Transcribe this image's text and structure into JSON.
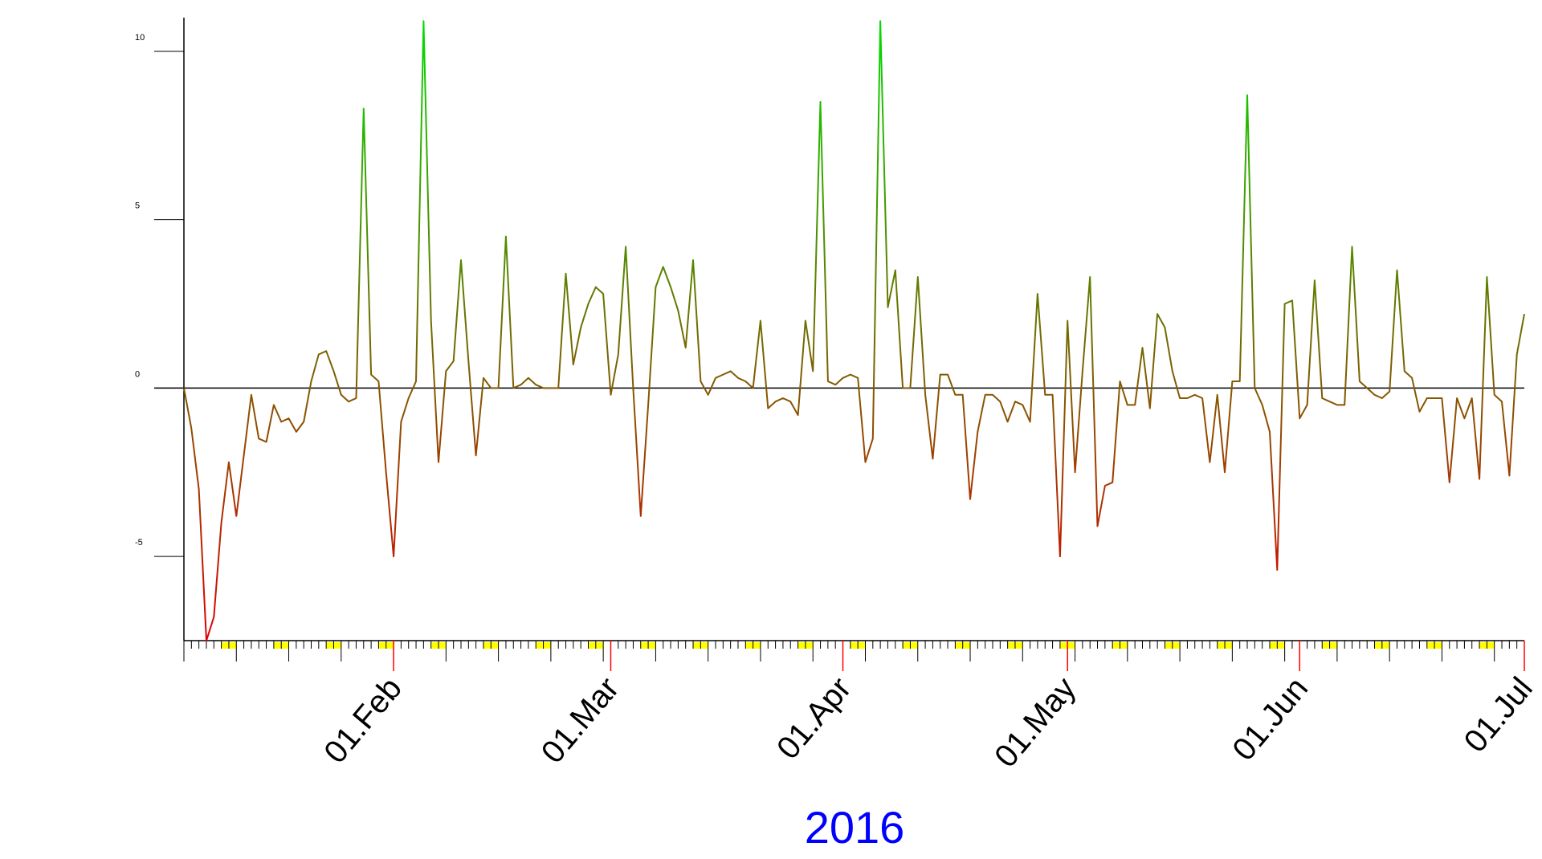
{
  "chart_data": {
    "type": "line",
    "year_label": "2016",
    "year_color": "#0000ff",
    "x_domain": [
      "2016-01-04",
      "2016-07-01"
    ],
    "ylim": [
      -7.5,
      11
    ],
    "yticks": [
      {
        "value": 10,
        "label": "10"
      },
      {
        "value": 5,
        "label": "5"
      },
      {
        "value": 0,
        "label": "0"
      },
      {
        "value": -5,
        "label": "-5"
      }
    ],
    "month_ticks": [
      {
        "date": "2016-02-01",
        "label": "01.Feb"
      },
      {
        "date": "2016-03-01",
        "label": "01.Mar"
      },
      {
        "date": "2016-04-01",
        "label": "01.Apr"
      },
      {
        "date": "2016-05-01",
        "label": "01.May"
      },
      {
        "date": "2016-06-01",
        "label": "01.Jun"
      },
      {
        "date": "2016-07-01",
        "label": "01.Jul"
      }
    ],
    "grid": false,
    "line_color_high": "#00dd00",
    "line_color_low": "#dd0000",
    "zero_line_color": "#000000",
    "weekend_marker_color": "#ffff00",
    "month_tick_color": "#ff0000",
    "series": [
      {
        "points": [
          [
            "2016-01-04",
            0.0
          ],
          [
            "2016-01-05",
            -1.2
          ],
          [
            "2016-01-06",
            -3.0
          ],
          [
            "2016-01-07",
            -7.5
          ],
          [
            "2016-01-08",
            -6.8
          ],
          [
            "2016-01-09",
            -4.0
          ],
          [
            "2016-01-10",
            -2.2
          ],
          [
            "2016-01-11",
            -3.8
          ],
          [
            "2016-01-12",
            -2.0
          ],
          [
            "2016-01-13",
            -0.2
          ],
          [
            "2016-01-14",
            -1.5
          ],
          [
            "2016-01-15",
            -1.6
          ],
          [
            "2016-01-16",
            -0.5
          ],
          [
            "2016-01-17",
            -1.0
          ],
          [
            "2016-01-18",
            -0.9
          ],
          [
            "2016-01-19",
            -1.3
          ],
          [
            "2016-01-20",
            -1.0
          ],
          [
            "2016-01-21",
            0.2
          ],
          [
            "2016-01-22",
            1.0
          ],
          [
            "2016-01-23",
            1.1
          ],
          [
            "2016-01-24",
            0.5
          ],
          [
            "2016-01-25",
            -0.2
          ],
          [
            "2016-01-26",
            -0.4
          ],
          [
            "2016-01-27",
            -0.3
          ],
          [
            "2016-01-28",
            8.3
          ],
          [
            "2016-01-29",
            0.4
          ],
          [
            "2016-01-30",
            0.2
          ],
          [
            "2016-01-31",
            -2.5
          ],
          [
            "2016-02-01",
            -5.0
          ],
          [
            "2016-02-02",
            -1.0
          ],
          [
            "2016-02-03",
            -0.3
          ],
          [
            "2016-02-04",
            0.2
          ],
          [
            "2016-02-05",
            10.9
          ],
          [
            "2016-02-06",
            2.0
          ],
          [
            "2016-02-07",
            -2.2
          ],
          [
            "2016-02-08",
            0.5
          ],
          [
            "2016-02-09",
            0.8
          ],
          [
            "2016-02-10",
            3.8
          ],
          [
            "2016-02-11",
            0.8
          ],
          [
            "2016-02-12",
            -2.0
          ],
          [
            "2016-02-13",
            0.3
          ],
          [
            "2016-02-14",
            0.0
          ],
          [
            "2016-02-15",
            0.0
          ],
          [
            "2016-02-16",
            4.5
          ],
          [
            "2016-02-17",
            0.0
          ],
          [
            "2016-02-18",
            0.1
          ],
          [
            "2016-02-19",
            0.3
          ],
          [
            "2016-02-20",
            0.1
          ],
          [
            "2016-02-21",
            0.0
          ],
          [
            "2016-02-22",
            0.0
          ],
          [
            "2016-02-23",
            0.0
          ],
          [
            "2016-02-24",
            3.4
          ],
          [
            "2016-02-25",
            0.7
          ],
          [
            "2016-02-26",
            1.8
          ],
          [
            "2016-02-27",
            2.5
          ],
          [
            "2016-02-28",
            3.0
          ],
          [
            "2016-02-29",
            2.8
          ],
          [
            "2016-03-01",
            -0.2
          ],
          [
            "2016-03-02",
            1.0
          ],
          [
            "2016-03-03",
            4.2
          ],
          [
            "2016-03-04",
            0.0
          ],
          [
            "2016-03-05",
            -3.8
          ],
          [
            "2016-03-06",
            -0.5
          ],
          [
            "2016-03-07",
            3.0
          ],
          [
            "2016-03-08",
            3.6
          ],
          [
            "2016-03-09",
            3.0
          ],
          [
            "2016-03-10",
            2.3
          ],
          [
            "2016-03-11",
            1.2
          ],
          [
            "2016-03-12",
            3.8
          ],
          [
            "2016-03-13",
            0.2
          ],
          [
            "2016-03-14",
            -0.2
          ],
          [
            "2016-03-15",
            0.3
          ],
          [
            "2016-03-16",
            0.4
          ],
          [
            "2016-03-17",
            0.5
          ],
          [
            "2016-03-18",
            0.3
          ],
          [
            "2016-03-19",
            0.2
          ],
          [
            "2016-03-20",
            0.0
          ],
          [
            "2016-03-21",
            2.0
          ],
          [
            "2016-03-22",
            -0.6
          ],
          [
            "2016-03-23",
            -0.4
          ],
          [
            "2016-03-24",
            -0.3
          ],
          [
            "2016-03-25",
            -0.4
          ],
          [
            "2016-03-26",
            -0.8
          ],
          [
            "2016-03-27",
            2.0
          ],
          [
            "2016-03-28",
            0.5
          ],
          [
            "2016-03-29",
            8.5
          ],
          [
            "2016-03-30",
            0.2
          ],
          [
            "2016-03-31",
            0.1
          ],
          [
            "2016-04-01",
            0.3
          ],
          [
            "2016-04-02",
            0.4
          ],
          [
            "2016-04-03",
            0.3
          ],
          [
            "2016-04-04",
            -2.2
          ],
          [
            "2016-04-05",
            -1.5
          ],
          [
            "2016-04-06",
            10.9
          ],
          [
            "2016-04-07",
            2.4
          ],
          [
            "2016-04-08",
            3.5
          ],
          [
            "2016-04-09",
            0.0
          ],
          [
            "2016-04-10",
            0.0
          ],
          [
            "2016-04-11",
            3.3
          ],
          [
            "2016-04-12",
            -0.2
          ],
          [
            "2016-04-13",
            -2.1
          ],
          [
            "2016-04-14",
            0.4
          ],
          [
            "2016-04-15",
            0.4
          ],
          [
            "2016-04-16",
            -0.2
          ],
          [
            "2016-04-17",
            -0.2
          ],
          [
            "2016-04-18",
            -3.3
          ],
          [
            "2016-04-19",
            -1.3
          ],
          [
            "2016-04-20",
            -0.2
          ],
          [
            "2016-04-21",
            -0.2
          ],
          [
            "2016-04-22",
            -0.4
          ],
          [
            "2016-04-23",
            -1.0
          ],
          [
            "2016-04-24",
            -0.4
          ],
          [
            "2016-04-25",
            -0.5
          ],
          [
            "2016-04-26",
            -1.0
          ],
          [
            "2016-04-27",
            2.8
          ],
          [
            "2016-04-28",
            -0.2
          ],
          [
            "2016-04-29",
            -0.2
          ],
          [
            "2016-04-30",
            -5.0
          ],
          [
            "2016-05-01",
            2.0
          ],
          [
            "2016-05-02",
            -2.5
          ],
          [
            "2016-05-03",
            0.5
          ],
          [
            "2016-05-04",
            3.3
          ],
          [
            "2016-05-05",
            -4.1
          ],
          [
            "2016-05-06",
            -2.9
          ],
          [
            "2016-05-07",
            -2.8
          ],
          [
            "2016-05-08",
            0.2
          ],
          [
            "2016-05-09",
            -0.5
          ],
          [
            "2016-05-10",
            -0.5
          ],
          [
            "2016-05-11",
            1.2
          ],
          [
            "2016-05-12",
            -0.6
          ],
          [
            "2016-05-13",
            2.2
          ],
          [
            "2016-05-14",
            1.8
          ],
          [
            "2016-05-15",
            0.5
          ],
          [
            "2016-05-16",
            -0.3
          ],
          [
            "2016-05-17",
            -0.3
          ],
          [
            "2016-05-18",
            -0.2
          ],
          [
            "2016-05-19",
            -0.3
          ],
          [
            "2016-05-20",
            -2.2
          ],
          [
            "2016-05-21",
            -0.2
          ],
          [
            "2016-05-22",
            -2.5
          ],
          [
            "2016-05-23",
            0.2
          ],
          [
            "2016-05-24",
            0.2
          ],
          [
            "2016-05-25",
            8.7
          ],
          [
            "2016-05-26",
            0.0
          ],
          [
            "2016-05-27",
            -0.5
          ],
          [
            "2016-05-28",
            -1.3
          ],
          [
            "2016-05-29",
            -5.4
          ],
          [
            "2016-05-30",
            2.5
          ],
          [
            "2016-05-31",
            2.6
          ],
          [
            "2016-06-01",
            -0.9
          ],
          [
            "2016-06-02",
            -0.5
          ],
          [
            "2016-06-03",
            3.2
          ],
          [
            "2016-06-04",
            -0.3
          ],
          [
            "2016-06-05",
            -0.4
          ],
          [
            "2016-06-06",
            -0.5
          ],
          [
            "2016-06-07",
            -0.5
          ],
          [
            "2016-06-08",
            4.2
          ],
          [
            "2016-06-09",
            0.2
          ],
          [
            "2016-06-10",
            0.0
          ],
          [
            "2016-06-11",
            -0.2
          ],
          [
            "2016-06-12",
            -0.3
          ],
          [
            "2016-06-13",
            -0.1
          ],
          [
            "2016-06-14",
            3.5
          ],
          [
            "2016-06-15",
            0.5
          ],
          [
            "2016-06-16",
            0.3
          ],
          [
            "2016-06-17",
            -0.7
          ],
          [
            "2016-06-18",
            -0.3
          ],
          [
            "2016-06-19",
            -0.3
          ],
          [
            "2016-06-20",
            -0.3
          ],
          [
            "2016-06-21",
            -2.8
          ],
          [
            "2016-06-22",
            -0.3
          ],
          [
            "2016-06-23",
            -0.9
          ],
          [
            "2016-06-24",
            -0.3
          ],
          [
            "2016-06-25",
            -2.7
          ],
          [
            "2016-06-26",
            3.3
          ],
          [
            "2016-06-27",
            -0.2
          ],
          [
            "2016-06-28",
            -0.4
          ],
          [
            "2016-06-29",
            -2.6
          ],
          [
            "2016-06-30",
            1.0
          ],
          [
            "2016-07-01",
            2.2
          ]
        ]
      }
    ]
  }
}
